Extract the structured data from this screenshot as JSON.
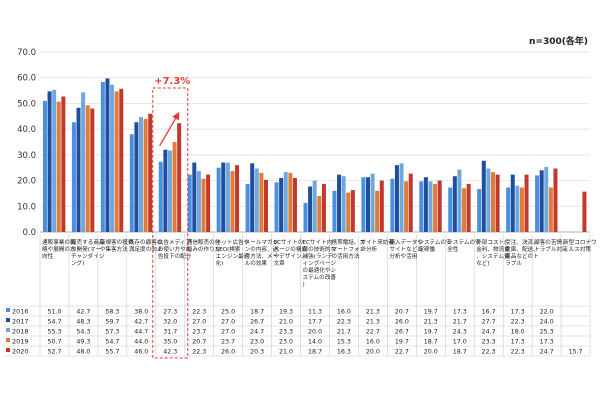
{
  "note": "n=300(各年)",
  "colors": {
    "2016": "#4a90e2",
    "2017": "#1f4e9e",
    "2018": "#6fa8dc",
    "2019": "#e07b39",
    "2020": "#c0392b",
    "highlight": "#e53935"
  },
  "chart_data": {
    "type": "bar",
    "title": "",
    "xlabel": "",
    "ylabel": "",
    "ylim": [
      0,
      70
    ],
    "yticks": [
      "0.0",
      "10.0",
      "20.0",
      "30.0",
      "40.0",
      "50.0",
      "60.0",
      "70.0"
    ],
    "grid": true,
    "categories": [
      "通販事業の戦略や展開の方向性",
      "販売する商品の開発(マーチャンダイジング)",
      "新規客の獲得や集客方法",
      "既存の顧客の満足度の向上",
      "広告メディアの使い方や広告投下の配分",
      "通信販売の仕組みの作り方",
      "ネット広告やSEO(検索エンジン最適化)",
      "メールマガジンの内容、送付方法、メールの効果",
      "ECサイトのページの構成やデザイン、文章",
      "ECサイト内部の技術的な補強(ランディングページの最適化やシステムの改善)",
      "携帯電話、スマートフォンの活用方法",
      "サイト来訪者の分析",
      "購入データやサイトなどの分析や活用",
      "システムの安定稼働",
      "システムの安全性",
      "外部コスト(金利、物流費、システム費など)",
      "受注、決済、倉庫、配送、返品などのトラブル",
      "顧客の苦情、トラブル対応",
      "新型コロナウィルス対策"
    ],
    "series": [
      {
        "name": "2016",
        "values": [
          51.0,
          42.7,
          58.3,
          38.0,
          27.3,
          22.3,
          25.0,
          18.7,
          19.3,
          11.3,
          16.0,
          21.3,
          20.7,
          19.7,
          17.3,
          16.7,
          17.3,
          22.0,
          null
        ]
      },
      {
        "name": "2017",
        "values": [
          54.7,
          48.3,
          59.7,
          42.7,
          32.0,
          27.0,
          27.0,
          26.7,
          21.0,
          17.7,
          22.3,
          21.3,
          26.0,
          21.3,
          21.7,
          27.7,
          22.3,
          24.0,
          null
        ]
      },
      {
        "name": "2018",
        "values": [
          55.3,
          54.3,
          57.3,
          44.7,
          31.7,
          23.7,
          27.0,
          24.7,
          23.3,
          20.0,
          21.7,
          22.7,
          26.7,
          19.7,
          24.3,
          24.7,
          18.0,
          25.3,
          null
        ]
      },
      {
        "name": "2019",
        "values": [
          50.7,
          49.3,
          54.7,
          44.0,
          35.0,
          20.7,
          23.7,
          23.0,
          23.0,
          14.0,
          15.3,
          16.0,
          19.7,
          18.7,
          17.0,
          23.3,
          17.3,
          17.3,
          null
        ]
      },
      {
        "name": "2020",
        "values": [
          52.7,
          48.0,
          55.7,
          46.0,
          42.3,
          22.3,
          26.0,
          20.3,
          21.0,
          18.7,
          16.3,
          20.0,
          22.7,
          20.0,
          18.7,
          22.3,
          22.3,
          24.7,
          15.7
        ]
      }
    ],
    "annotation": "+7.3%",
    "highlight_category_index": 4
  }
}
